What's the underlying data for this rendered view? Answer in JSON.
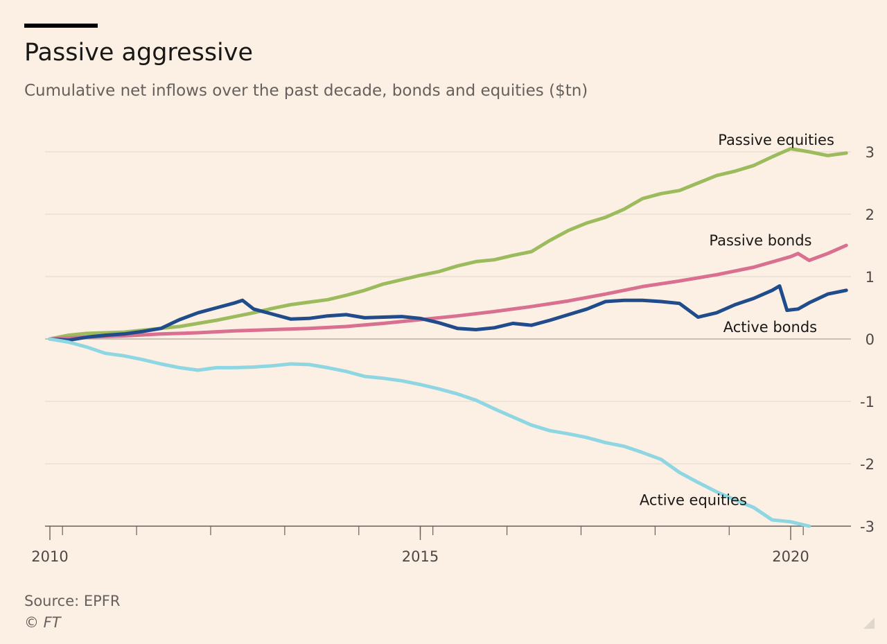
{
  "header": {
    "title": "Passive aggressive",
    "subtitle": "Cumulative net inflows over the past decade, bonds and equities ($tn)"
  },
  "footer": {
    "source": "Source: EPFR",
    "credit": "© FT"
  },
  "chart_data": {
    "type": "line",
    "title": "Passive aggressive",
    "subtitle": "Cumulative net inflows over the past decade, bonds and equities ($tn)",
    "xlabel": "",
    "ylabel": "",
    "xlim": [
      2010,
      2020.85
    ],
    "ylim": [
      -3,
      3.2
    ],
    "y_ticks": [
      3,
      2,
      1,
      0,
      -1,
      -2,
      -3
    ],
    "y_tick_labels": [
      "3",
      "2",
      "1",
      "0",
      "-1",
      "-2",
      "-3"
    ],
    "x_tick_labels": [
      {
        "x": 2010,
        "label": "2010"
      },
      {
        "x": 2015,
        "label": "2015"
      },
      {
        "x": 2020,
        "label": "2020"
      }
    ],
    "x_minor_ticks": [
      2010.17,
      2011.17,
      2012.17,
      2013.17,
      2014.17,
      2015,
      2015.17,
      2016.17,
      2017.17,
      2018.17,
      2019.17,
      2020.17
    ],
    "grid": true,
    "y_axis_side": "right",
    "legend": "inline-labels",
    "series": [
      {
        "name": "Passive equities",
        "color": "#9cbb5c",
        "label_position": {
          "x": 2019.02,
          "y": 3.2
        },
        "points": [
          [
            2010,
            0
          ],
          [
            2010.25,
            0.06
          ],
          [
            2010.5,
            0.09
          ],
          [
            2010.75,
            0.1
          ],
          [
            2011,
            0.11
          ],
          [
            2011.25,
            0.14
          ],
          [
            2011.5,
            0.17
          ],
          [
            2011.75,
            0.2
          ],
          [
            2012,
            0.25
          ],
          [
            2012.25,
            0.3
          ],
          [
            2012.5,
            0.36
          ],
          [
            2012.75,
            0.42
          ],
          [
            2013,
            0.49
          ],
          [
            2013.25,
            0.55
          ],
          [
            2013.5,
            0.59
          ],
          [
            2013.75,
            0.63
          ],
          [
            2014,
            0.7
          ],
          [
            2014.25,
            0.78
          ],
          [
            2014.5,
            0.88
          ],
          [
            2014.75,
            0.95
          ],
          [
            2015,
            1.02
          ],
          [
            2015.25,
            1.08
          ],
          [
            2015.5,
            1.17
          ],
          [
            2015.75,
            1.24
          ],
          [
            2016,
            1.27
          ],
          [
            2016.25,
            1.34
          ],
          [
            2016.5,
            1.4
          ],
          [
            2016.75,
            1.58
          ],
          [
            2017,
            1.74
          ],
          [
            2017.25,
            1.86
          ],
          [
            2017.5,
            1.95
          ],
          [
            2017.75,
            2.08
          ],
          [
            2018,
            2.25
          ],
          [
            2018.25,
            2.33
          ],
          [
            2018.5,
            2.38
          ],
          [
            2018.75,
            2.5
          ],
          [
            2019,
            2.62
          ],
          [
            2019.25,
            2.69
          ],
          [
            2019.5,
            2.78
          ],
          [
            2019.75,
            2.92
          ],
          [
            2020,
            3.05
          ],
          [
            2020.25,
            3.0
          ],
          [
            2020.5,
            2.94
          ],
          [
            2020.75,
            2.98
          ]
        ]
      },
      {
        "name": "Passive bonds",
        "color": "#d9708f",
        "label_position": {
          "x": 2018.9,
          "y": 1.59
        },
        "points": [
          [
            2010,
            0
          ],
          [
            2010.5,
            0.03
          ],
          [
            2011,
            0.05
          ],
          [
            2011.5,
            0.08
          ],
          [
            2012,
            0.1
          ],
          [
            2012.5,
            0.13
          ],
          [
            2013,
            0.15
          ],
          [
            2013.5,
            0.17
          ],
          [
            2014,
            0.2
          ],
          [
            2014.5,
            0.25
          ],
          [
            2015,
            0.31
          ],
          [
            2015.5,
            0.37
          ],
          [
            2016,
            0.44
          ],
          [
            2016.5,
            0.52
          ],
          [
            2017,
            0.61
          ],
          [
            2017.5,
            0.72
          ],
          [
            2018,
            0.84
          ],
          [
            2018.5,
            0.93
          ],
          [
            2019,
            1.03
          ],
          [
            2019.5,
            1.15
          ],
          [
            2020,
            1.32
          ],
          [
            2020.1,
            1.37
          ],
          [
            2020.25,
            1.26
          ],
          [
            2020.5,
            1.37
          ],
          [
            2020.75,
            1.5
          ]
        ]
      },
      {
        "name": "Active bonds",
        "color": "#204c8c",
        "label_position": {
          "x": 2019.09,
          "y": 0.2
        },
        "points": [
          [
            2010,
            0
          ],
          [
            2010.25,
            -0.02
          ],
          [
            2010.5,
            0.03
          ],
          [
            2010.75,
            0.06
          ],
          [
            2011,
            0.08
          ],
          [
            2011.25,
            0.12
          ],
          [
            2011.5,
            0.17
          ],
          [
            2011.75,
            0.31
          ],
          [
            2012,
            0.42
          ],
          [
            2012.25,
            0.5
          ],
          [
            2012.5,
            0.58
          ],
          [
            2012.6,
            0.62
          ],
          [
            2012.75,
            0.48
          ],
          [
            2013,
            0.4
          ],
          [
            2013.25,
            0.32
          ],
          [
            2013.5,
            0.33
          ],
          [
            2013.75,
            0.37
          ],
          [
            2014,
            0.39
          ],
          [
            2014.25,
            0.34
          ],
          [
            2014.5,
            0.35
          ],
          [
            2014.75,
            0.36
          ],
          [
            2015,
            0.33
          ],
          [
            2015.25,
            0.26
          ],
          [
            2015.5,
            0.17
          ],
          [
            2015.75,
            0.15
          ],
          [
            2016,
            0.18
          ],
          [
            2016.25,
            0.25
          ],
          [
            2016.5,
            0.22
          ],
          [
            2016.75,
            0.3
          ],
          [
            2017,
            0.39
          ],
          [
            2017.25,
            0.48
          ],
          [
            2017.5,
            0.6
          ],
          [
            2017.75,
            0.62
          ],
          [
            2018,
            0.62
          ],
          [
            2018.25,
            0.6
          ],
          [
            2018.5,
            0.57
          ],
          [
            2018.75,
            0.35
          ],
          [
            2019,
            0.42
          ],
          [
            2019.25,
            0.55
          ],
          [
            2019.5,
            0.65
          ],
          [
            2019.75,
            0.78
          ],
          [
            2019.85,
            0.85
          ],
          [
            2019.95,
            0.46
          ],
          [
            2020.1,
            0.48
          ],
          [
            2020.25,
            0.58
          ],
          [
            2020.5,
            0.72
          ],
          [
            2020.75,
            0.78
          ]
        ]
      },
      {
        "name": "Active equities",
        "color": "#8fd6e3",
        "label_position": {
          "x": 2017.96,
          "y": -2.57
        },
        "points": [
          [
            2010,
            0
          ],
          [
            2010.25,
            -0.05
          ],
          [
            2010.5,
            -0.13
          ],
          [
            2010.75,
            -0.23
          ],
          [
            2011,
            -0.27
          ],
          [
            2011.25,
            -0.33
          ],
          [
            2011.5,
            -0.4
          ],
          [
            2011.75,
            -0.46
          ],
          [
            2012,
            -0.5
          ],
          [
            2012.25,
            -0.46
          ],
          [
            2012.5,
            -0.46
          ],
          [
            2012.75,
            -0.45
          ],
          [
            2013,
            -0.43
          ],
          [
            2013.25,
            -0.4
          ],
          [
            2013.5,
            -0.41
          ],
          [
            2013.75,
            -0.46
          ],
          [
            2014,
            -0.52
          ],
          [
            2014.25,
            -0.6
          ],
          [
            2014.5,
            -0.63
          ],
          [
            2014.75,
            -0.67
          ],
          [
            2015,
            -0.73
          ],
          [
            2015.25,
            -0.8
          ],
          [
            2015.5,
            -0.88
          ],
          [
            2015.75,
            -0.98
          ],
          [
            2016,
            -1.12
          ],
          [
            2016.25,
            -1.25
          ],
          [
            2016.5,
            -1.38
          ],
          [
            2016.75,
            -1.47
          ],
          [
            2017,
            -1.52
          ],
          [
            2017.25,
            -1.58
          ],
          [
            2017.5,
            -1.66
          ],
          [
            2017.75,
            -1.72
          ],
          [
            2018,
            -1.82
          ],
          [
            2018.25,
            -1.93
          ],
          [
            2018.5,
            -2.14
          ],
          [
            2018.75,
            -2.3
          ],
          [
            2019,
            -2.45
          ],
          [
            2019.25,
            -2.58
          ],
          [
            2019.5,
            -2.7
          ],
          [
            2019.75,
            -2.9
          ],
          [
            2020,
            -2.93
          ],
          [
            2020.25,
            -3.0
          ]
        ]
      }
    ]
  }
}
